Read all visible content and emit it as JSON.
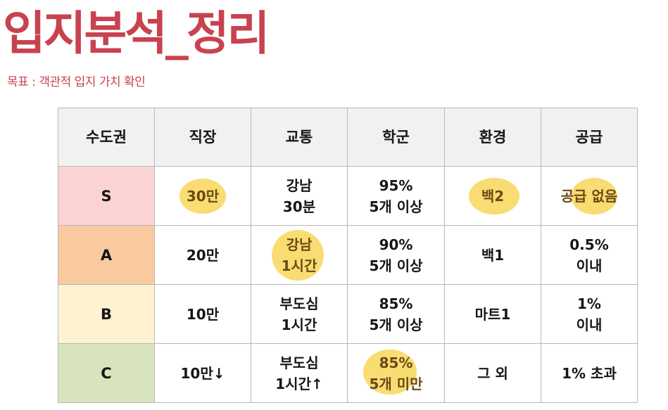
{
  "title": "입지분석_정리",
  "subtitle": "목표 : 객관적 입지 가치 확인",
  "colors": {
    "title": "#c8424f",
    "header_bg": "#f1f1f1",
    "tier_S": "#fbd3d3",
    "tier_A": "#f9c9a0",
    "tier_B": "#fff2d0",
    "tier_C": "#d8e4bd",
    "highlight": "#f7d24a"
  },
  "table": {
    "headers": [
      "수도권",
      "직장",
      "교통",
      "학군",
      "환경",
      "공급"
    ],
    "rows": [
      {
        "tier": "S",
        "job": "30만",
        "transport": [
          "강남",
          "30분"
        ],
        "school": [
          "95%",
          "5개 이상"
        ],
        "environment": "백2",
        "supply": "공급 없음"
      },
      {
        "tier": "A",
        "job": "20만",
        "transport": [
          "강남",
          "1시간"
        ],
        "school": [
          "90%",
          "5개 이상"
        ],
        "environment": "백1",
        "supply": [
          "0.5%",
          "이내"
        ]
      },
      {
        "tier": "B",
        "job": "10만",
        "transport": [
          "부도심",
          "1시간"
        ],
        "school": [
          "85%",
          "5개 이상"
        ],
        "environment": "마트1",
        "supply": [
          "1%",
          "이내"
        ]
      },
      {
        "tier": "C",
        "job": "10만↓",
        "transport": [
          "부도심",
          "1시간↑"
        ],
        "school": [
          "85%",
          "5개 미만"
        ],
        "environment": "그 외",
        "supply": "1% 초과"
      }
    ]
  }
}
